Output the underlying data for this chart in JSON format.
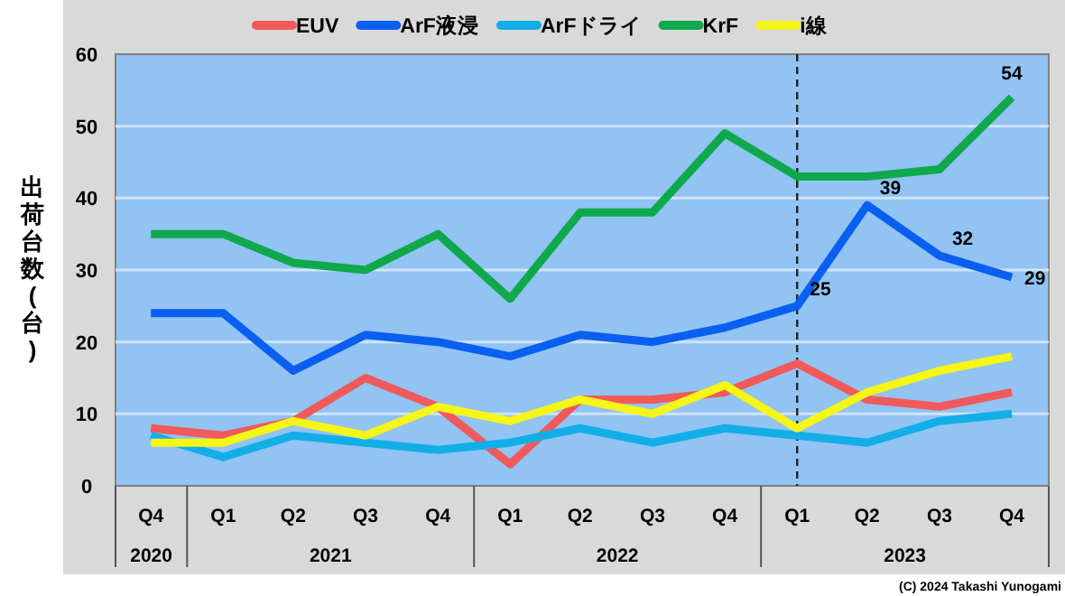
{
  "chart_data": {
    "type": "line",
    "x": [
      "2020-11-15",
      "2021-02-15",
      "2021-05-15",
      "2021-08-15",
      "2021-11-15",
      "2022-02-15",
      "2022-05-15",
      "2022-08-15",
      "2022-11-15",
      "2023-02-15",
      "2023-05-15",
      "2023-08-15",
      "2023-11-15"
    ],
    "xlim": [
      "2020-10-01",
      "2024-01-01"
    ],
    "xticks": [
      {
        "value": "2020-11-15",
        "label": "Q4"
      },
      {
        "value": "2021-02-15",
        "label": "Q1"
      },
      {
        "value": "2021-05-15",
        "label": "Q2"
      },
      {
        "value": "2021-08-15",
        "label": "Q3"
      },
      {
        "value": "2021-11-15",
        "label": "Q4"
      },
      {
        "value": "2022-02-15",
        "label": "Q1"
      },
      {
        "value": "2022-05-15",
        "label": "Q2"
      },
      {
        "value": "2022-08-15",
        "label": "Q3"
      },
      {
        "value": "2022-11-15",
        "label": "Q4"
      },
      {
        "value": "2023-02-15",
        "label": "Q1"
      },
      {
        "value": "2023-05-15",
        "label": "Q2"
      },
      {
        "value": "2023-08-15",
        "label": "Q3"
      },
      {
        "value": "2023-11-15",
        "label": "Q4"
      }
    ],
    "ylabel": "出荷台数(台)",
    "ylim": [
      0,
      60
    ],
    "yticks": [
      0,
      10,
      20,
      30,
      40,
      50,
      60
    ],
    "grid": "y",
    "legend": "top",
    "marker": "none",
    "line_style": "solid",
    "series": [
      {
        "name": "EUV",
        "color": "#f05a5a",
        "values": [
          8,
          7,
          9,
          15,
          11,
          3,
          12,
          12,
          13,
          17,
          12,
          11,
          13
        ]
      },
      {
        "name": "ArF液浸",
        "color": "#0a5ff0",
        "values": [
          24,
          24,
          16,
          21,
          20,
          18,
          21,
          20,
          22,
          25,
          39,
          32,
          29
        ],
        "value_labels": [
          null,
          null,
          null,
          null,
          null,
          null,
          null,
          null,
          null,
          "25",
          "39",
          "32",
          "29"
        ]
      },
      {
        "name": "ArFドライ",
        "color": "#12aee8",
        "values": [
          7,
          4,
          7,
          6,
          5,
          6,
          8,
          6,
          8,
          7,
          6,
          9,
          10
        ]
      },
      {
        "name": "KrF",
        "color": "#10a84c",
        "values": [
          35,
          35,
          31,
          30,
          35,
          26,
          38,
          38,
          49,
          43,
          43,
          44,
          54
        ],
        "value_labels": [
          null,
          null,
          null,
          null,
          null,
          null,
          null,
          null,
          null,
          null,
          null,
          null,
          "54"
        ]
      },
      {
        "name": "i線",
        "color": "#f5f516",
        "values": [
          6,
          6,
          9,
          7,
          11,
          9,
          12,
          10,
          14,
          8,
          13,
          16,
          18
        ]
      }
    ],
    "ref_lines": [
      {
        "axis": "x",
        "value": "2023-02-15",
        "line_style": "dashed",
        "color": "#222222"
      }
    ],
    "annotations": [
      "2020",
      "2021",
      "2022",
      "2023",
      "(C) 2024 Takashi Yunogami"
    ]
  }
}
